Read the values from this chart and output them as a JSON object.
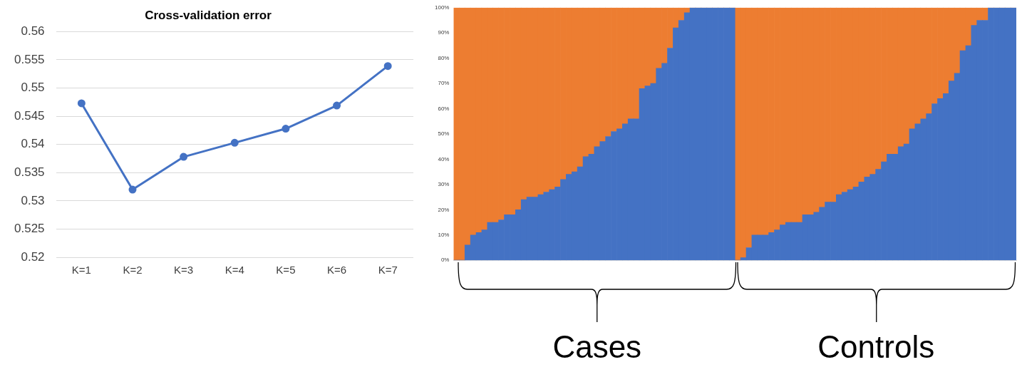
{
  "chart_data": [
    {
      "type": "line",
      "title": "Cross-validation error",
      "categories": [
        "K=1",
        "K=2",
        "K=3",
        "K=4",
        "K=5",
        "K=6",
        "K=7"
      ],
      "series": [
        {
          "color": "#4472c4",
          "values": [
            0.5473,
            0.532,
            0.5378,
            0.5403,
            0.5428,
            0.5469,
            0.5539
          ]
        }
      ],
      "ylim": [
        0.52,
        0.56
      ],
      "yticks": [
        0.52,
        0.525,
        0.53,
        0.535,
        0.54,
        0.545,
        0.55,
        0.555,
        0.56
      ],
      "grid": "y",
      "legend": false,
      "marker": "circle",
      "line_style": "solid"
    },
    {
      "type": "bar",
      "stacked": true,
      "categories": [
        null,
        null,
        null,
        null,
        null,
        null,
        null,
        null,
        null,
        null,
        null,
        null,
        null,
        null,
        null,
        null,
        null,
        null,
        null,
        null,
        null,
        null,
        null,
        null,
        null,
        null,
        null,
        null,
        null,
        null,
        null,
        null,
        null,
        null,
        null,
        null,
        null,
        null,
        null,
        null,
        null,
        null,
        null,
        null,
        null,
        null,
        null,
        null,
        null,
        null,
        null,
        null,
        null,
        null,
        null,
        null,
        null,
        null,
        null,
        null,
        null,
        null,
        null,
        null,
        null,
        null,
        null,
        null,
        null,
        null,
        null,
        null,
        null,
        null,
        null,
        null,
        null,
        null,
        null,
        null,
        null,
        null,
        null,
        null,
        null,
        null,
        null,
        null,
        null,
        null,
        null,
        null,
        null,
        null,
        null,
        null,
        null,
        null,
        null,
        null
      ],
      "series": [
        {
          "color": "#4472c4",
          "values": [
            0,
            0,
            6,
            10,
            11,
            12,
            15,
            15,
            16,
            18,
            18,
            20,
            24,
            25,
            25,
            26,
            27,
            28,
            29,
            32,
            34,
            35,
            37,
            41,
            42,
            45,
            47,
            49,
            51,
            52,
            54,
            56,
            56,
            68,
            69,
            70,
            76,
            78,
            84,
            92,
            95,
            98,
            100,
            100,
            100,
            100,
            100,
            100,
            100,
            100,
            0,
            1,
            5,
            10,
            10,
            10,
            11,
            12,
            14,
            15,
            15,
            15,
            18,
            18,
            19,
            21,
            23,
            23,
            26,
            27,
            28,
            29,
            31,
            33,
            34,
            36,
            39,
            42,
            42,
            45,
            46,
            52,
            54,
            56,
            58,
            62,
            64,
            66,
            71,
            74,
            83,
            85,
            93,
            95,
            95,
            100,
            100,
            100,
            100,
            100
          ]
        },
        {
          "color": "#ed7d31",
          "values": [
            100,
            100,
            94,
            90,
            89,
            88,
            85,
            85,
            84,
            82,
            82,
            80,
            76,
            75,
            75,
            74,
            73,
            72,
            71,
            68,
            66,
            65,
            63,
            59,
            58,
            55,
            53,
            51,
            49,
            48,
            46,
            44,
            44,
            32,
            31,
            30,
            24,
            22,
            16,
            8,
            5,
            2,
            0,
            0,
            0,
            0,
            0,
            0,
            0,
            0,
            100,
            99,
            95,
            90,
            90,
            90,
            89,
            88,
            86,
            85,
            85,
            85,
            82,
            82,
            81,
            79,
            77,
            77,
            74,
            73,
            72,
            71,
            69,
            67,
            66,
            64,
            61,
            58,
            58,
            55,
            54,
            48,
            46,
            44,
            42,
            38,
            36,
            34,
            29,
            26,
            17,
            15,
            7,
            5,
            5,
            0,
            0,
            0,
            0,
            0
          ]
        }
      ],
      "ylim": [
        0,
        100
      ],
      "yticks": [
        {
          "value": 0,
          "label": "0%"
        },
        {
          "value": 10,
          "label": "10%"
        },
        {
          "value": 20,
          "label": "20%"
        },
        {
          "value": 30,
          "label": "30%"
        },
        {
          "value": 40,
          "label": "40%"
        },
        {
          "value": 50,
          "label": "50%"
        },
        {
          "value": 60,
          "label": "60%"
        },
        {
          "value": 70,
          "label": "70%"
        },
        {
          "value": 80,
          "label": "80%"
        },
        {
          "value": 90,
          "label": "90%"
        },
        {
          "value": 100,
          "label": "100%"
        }
      ],
      "grid": false,
      "legend": false,
      "tick_labels": "y",
      "annotations": [
        "Cases",
        "Controls"
      ]
    }
  ]
}
